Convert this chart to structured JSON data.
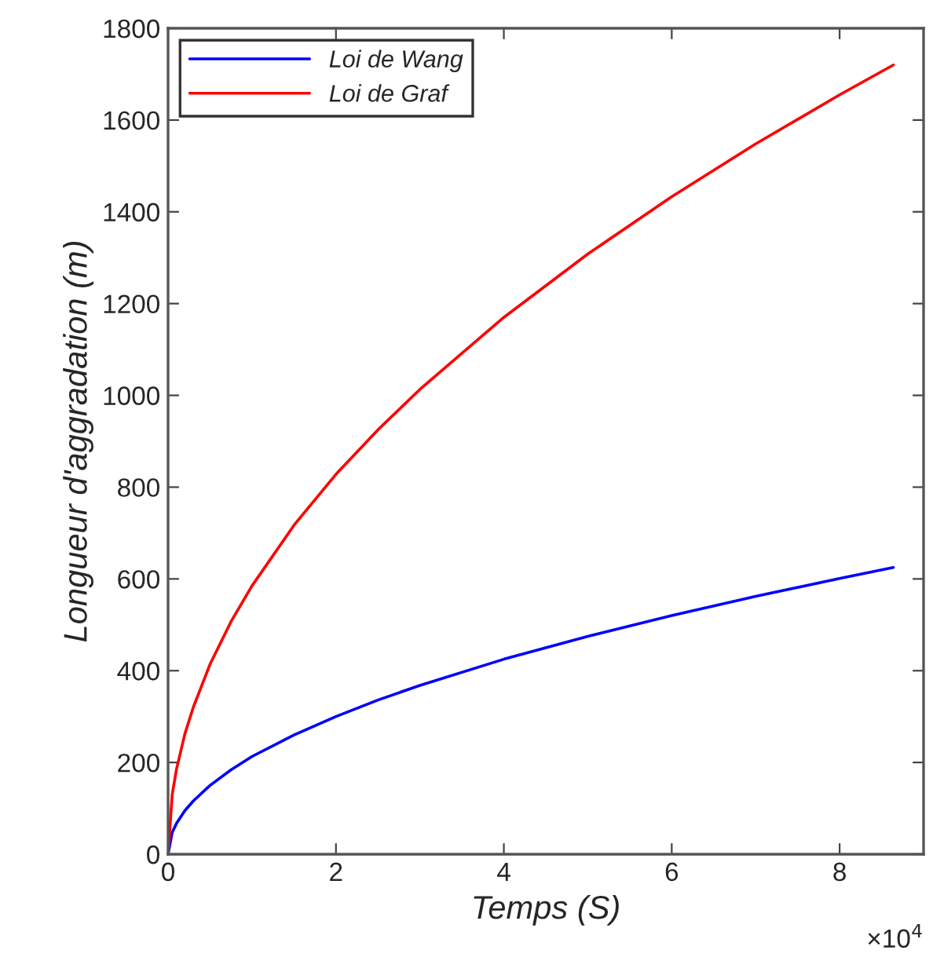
{
  "chart_data": {
    "type": "line",
    "xlabel": "Temps (S)",
    "ylabel": "Longueur d'aggradation (m)",
    "x": [
      0,
      0.05,
      0.1,
      0.2,
      0.3,
      0.5,
      0.75,
      1,
      1.5,
      2,
      2.5,
      3,
      4,
      5,
      6,
      7,
      8,
      8.64
    ],
    "series": [
      {
        "name": "Loi de Wang",
        "color": "#0000ff",
        "values": [
          0,
          48,
          67,
          95,
          116,
          150,
          184,
          213,
          260,
          300,
          336,
          368,
          425,
          475,
          520,
          562,
          601,
          625
        ]
      },
      {
        "name": "Loi de Graf",
        "color": "#ff0000",
        "values": [
          0,
          131,
          185,
          262,
          320,
          414,
          507,
          585,
          717,
          828,
          925,
          1013,
          1170,
          1308,
          1433,
          1548,
          1655,
          1720
        ]
      }
    ],
    "xlim": [
      0,
      9
    ],
    "xticks": [
      0,
      2,
      4,
      6,
      8
    ],
    "ylim": [
      0,
      1800
    ],
    "yticks": [
      0,
      200,
      400,
      600,
      800,
      1000,
      1200,
      1400,
      1600,
      1800
    ],
    "annotations": [
      "×10$^{4}$"
    ],
    "legend": "top left",
    "grid": false,
    "marker": "none",
    "line_style": "solid"
  }
}
